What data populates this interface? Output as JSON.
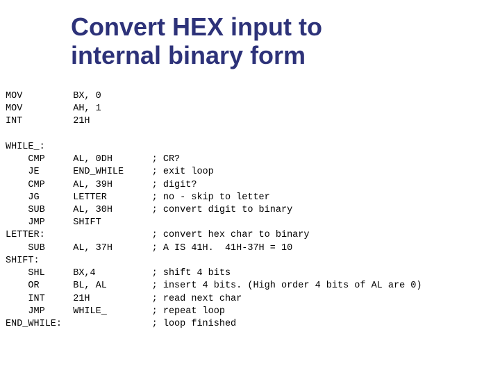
{
  "title_line1": "Convert HEX input to",
  "title_line2": "internal binary form",
  "colors": {
    "title": "#2d3279",
    "code": "#000000",
    "background": "#ffffff"
  },
  "typography": {
    "title_fontsize": 36,
    "title_weight": "bold",
    "code_fontsize": 13.5,
    "code_family": "Courier New"
  },
  "code_lines": [
    {
      "col1": "MOV",
      "col2": "BX, 0",
      "col3": ""
    },
    {
      "col1": "MOV",
      "col2": "AH, 1",
      "col3": ""
    },
    {
      "col1": "INT",
      "col2": "21H",
      "col3": ""
    },
    {
      "col1": "",
      "col2": "",
      "col3": ""
    },
    {
      "col1": "WHILE_:",
      "col2": "",
      "col3": ""
    },
    {
      "col1": "    CMP",
      "col2": "AL, 0DH",
      "col3": "; CR?"
    },
    {
      "col1": "    JE",
      "col2": "END_WHILE",
      "col3": "; exit loop"
    },
    {
      "col1": "    CMP",
      "col2": "AL, 39H",
      "col3": "; digit?"
    },
    {
      "col1": "    JG",
      "col2": "LETTER",
      "col3": "; no - skip to letter"
    },
    {
      "col1": "    SUB",
      "col2": "AL, 30H",
      "col3": "; convert digit to binary"
    },
    {
      "col1": "    JMP",
      "col2": "SHIFT",
      "col3": ""
    },
    {
      "col1": "LETTER:",
      "col2": "",
      "col3": "; convert hex char to binary"
    },
    {
      "col1": "    SUB",
      "col2": "AL, 37H",
      "col3": "; A IS 41H.  41H-37H = 10"
    },
    {
      "col1": "SHIFT:",
      "col2": "",
      "col3": ""
    },
    {
      "col1": "    SHL",
      "col2": "BX,4",
      "col3": "; shift 4 bits"
    },
    {
      "col1": "    OR",
      "col2": "BL, AL",
      "col3": "; insert 4 bits. (High order 4 bits of AL are 0)"
    },
    {
      "col1": "    INT",
      "col2": "21H",
      "col3": "; read next char"
    },
    {
      "col1": "    JMP",
      "col2": "WHILE_",
      "col3": "; repeat loop"
    },
    {
      "col1": "END_WHILE:",
      "col2": "",
      "col3": "; loop finished"
    }
  ],
  "columns": {
    "col1_width": 12,
    "col2_width": 14
  }
}
